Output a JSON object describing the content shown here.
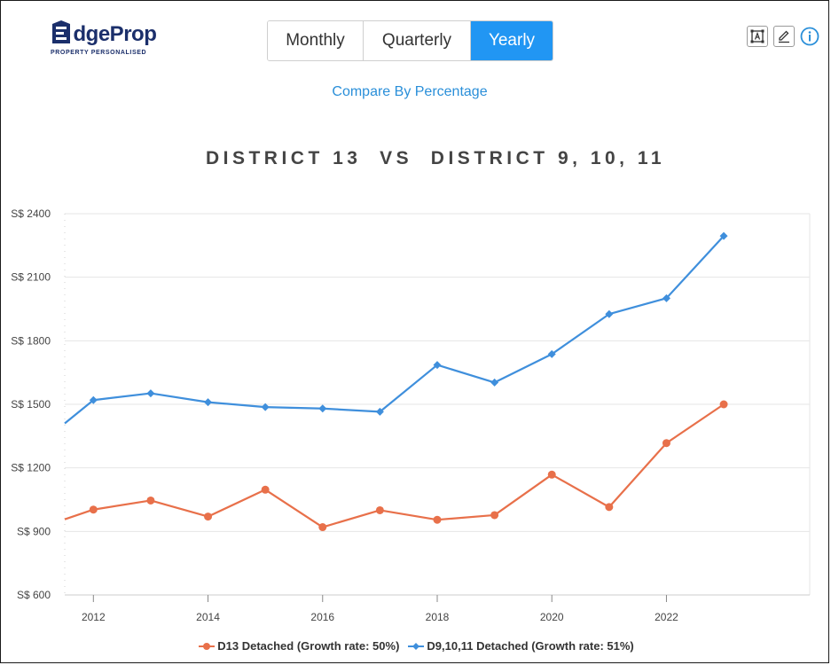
{
  "brand": {
    "name_prefix": "E",
    "name_rest": "dgeProp",
    "tagline": "PROPERTY PERSONALISED"
  },
  "tabs": [
    {
      "label": "Monthly",
      "active": false
    },
    {
      "label": "Quarterly",
      "active": false
    },
    {
      "label": "Yearly",
      "active": true
    }
  ],
  "compare_link": "Compare By Percentage",
  "toolbar": {
    "icons": [
      "text-frame-icon",
      "pencil-icon",
      "info-icon"
    ]
  },
  "colors": {
    "accent": "#2196f3",
    "d13": "#e8704a",
    "d91011": "#3f8fdc",
    "link": "#2a8fd9"
  },
  "chart_data": {
    "type": "line",
    "title": "DISTRICT 13  VS  DISTRICT 9, 10, 11",
    "x": [
      2011.5,
      2012,
      2013,
      2014,
      2015,
      2016,
      2017,
      2018,
      2019,
      2020,
      2021,
      2022,
      2023
    ],
    "x_ticks": [
      "2012",
      "2014",
      "2016",
      "2018",
      "2020",
      "2022"
    ],
    "y_ticks": [
      "S$ 2400",
      "S$ 2100",
      "S$ 1800",
      "S$ 1500",
      "S$ 1200",
      "S$ 900",
      "S$ 600"
    ],
    "ylim": [
      600,
      2400
    ],
    "xlim": [
      2011.5,
      2024.5
    ],
    "grid": true,
    "legend_position": "bottom",
    "series": [
      {
        "name": "D13 Detached (Growth rate: 50%)",
        "marker": "circle",
        "values": [
          957,
          1003,
          1046,
          970,
          1097,
          920,
          1000,
          955,
          977,
          1168,
          1015,
          1317,
          1500
        ]
      },
      {
        "name": "D9,10,11 Detached (Growth rate: 51%)",
        "marker": "diamond",
        "values": [
          1410,
          1520,
          1552,
          1510,
          1487,
          1480,
          1465,
          1686,
          1603,
          1737,
          1926,
          2001,
          2295
        ]
      }
    ]
  }
}
